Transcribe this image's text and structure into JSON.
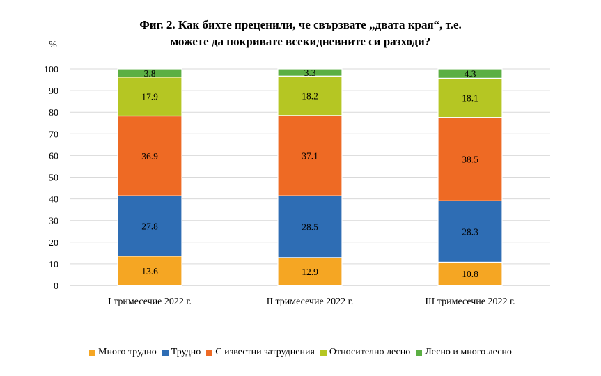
{
  "chart_data": {
    "type": "bar",
    "stacked": true,
    "title_line1": "Фиг. 2. Как бихте преценили, че свързвате „двата края“, т.е.",
    "title_line2": "можете да покривате всекидневните си разходи?",
    "ylabel": "%",
    "ylim": [
      0,
      100
    ],
    "yticks": [
      "0",
      "10",
      "20",
      "30",
      "40",
      "50",
      "60",
      "70",
      "80",
      "90",
      "100"
    ],
    "grid": true,
    "legend_position": "bottom",
    "categories": [
      "I тримесечие 2022 г.",
      "II тримесечие 2022 г.",
      "III тримесечие 2022 г."
    ],
    "series": [
      {
        "name": "Много трудно",
        "color": "#F5A623",
        "values": [
          13.6,
          12.9,
          10.8
        ],
        "labels": [
          "13.6",
          "12.9",
          "10.8"
        ]
      },
      {
        "name": "Трудно",
        "color": "#2E6DB4",
        "values": [
          27.8,
          28.5,
          28.3
        ],
        "labels": [
          "27.8",
          "28.5",
          "28.3"
        ]
      },
      {
        "name": "С известни затруднения",
        "color": "#EE6A24",
        "values": [
          36.9,
          37.1,
          38.5
        ],
        "labels": [
          "36.9",
          "37.1",
          "38.5"
        ]
      },
      {
        "name": "Относително лесно",
        "color": "#B5C623",
        "values": [
          17.9,
          18.2,
          18.1
        ],
        "labels": [
          "17.9",
          "18.2",
          "18.1"
        ]
      },
      {
        "name": "Лесно и много лесно",
        "color": "#5BAF43",
        "values": [
          3.8,
          3.3,
          4.3
        ],
        "labels": [
          "3.8",
          "3.3",
          "4.3"
        ]
      }
    ]
  }
}
